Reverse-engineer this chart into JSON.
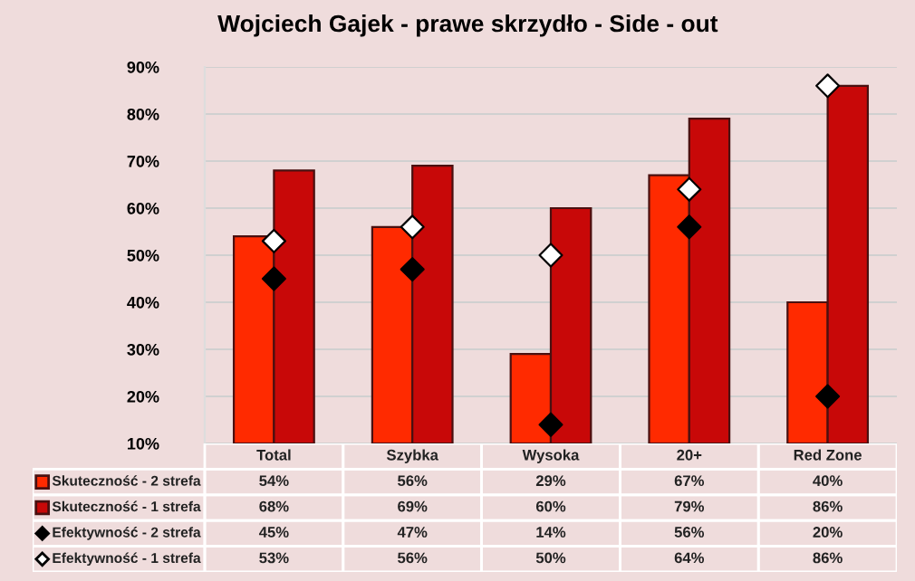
{
  "chart_data": {
    "type": "bar",
    "title": "Wojciech Gajek - prawe skrzydło - Side - out",
    "categories": [
      "Total",
      "Szybka",
      "Wysoka",
      "20+",
      "Red Zone"
    ],
    "series": [
      {
        "name": "Skuteczność - 2 strefa",
        "color": "#ff2a00",
        "values": [
          54,
          56,
          29,
          67,
          40
        ],
        "value_labels": [
          "54%",
          "56%",
          "29%",
          "67%",
          "40%"
        ]
      },
      {
        "name": "Skuteczność - 1 strefa",
        "color": "#c80808",
        "values": [
          68,
          69,
          60,
          79,
          86
        ],
        "value_labels": [
          "68%",
          "69%",
          "60%",
          "79%",
          "86%"
        ]
      },
      {
        "name": "Efektywność - 2 strefa",
        "type": "scatter",
        "marker": "diamond",
        "color": "#000000",
        "values": [
          45,
          47,
          14,
          56,
          20
        ],
        "value_labels": [
          "45%",
          "47%",
          "14%",
          "56%",
          "20%"
        ]
      },
      {
        "name": "Efektywność - 1 strefa",
        "type": "scatter",
        "marker": "diamond",
        "color": "#ffffff",
        "values": [
          53,
          56,
          50,
          64,
          86
        ],
        "value_labels": [
          "53%",
          "56%",
          "50%",
          "64%",
          "86%"
        ]
      }
    ],
    "ylim": [
      10,
      90
    ],
    "yticks": [
      {
        "value": 10,
        "label": "10%"
      },
      {
        "value": 20,
        "label": "20%"
      },
      {
        "value": 30,
        "label": "30%"
      },
      {
        "value": 40,
        "label": "40%"
      },
      {
        "value": 50,
        "label": "50%"
      },
      {
        "value": 60,
        "label": "60%"
      },
      {
        "value": 70,
        "label": "70%"
      },
      {
        "value": 80,
        "label": "80%"
      },
      {
        "value": 90,
        "label": "90%"
      }
    ],
    "grid": "y",
    "legend": "bottom",
    "data_labels": true
  }
}
